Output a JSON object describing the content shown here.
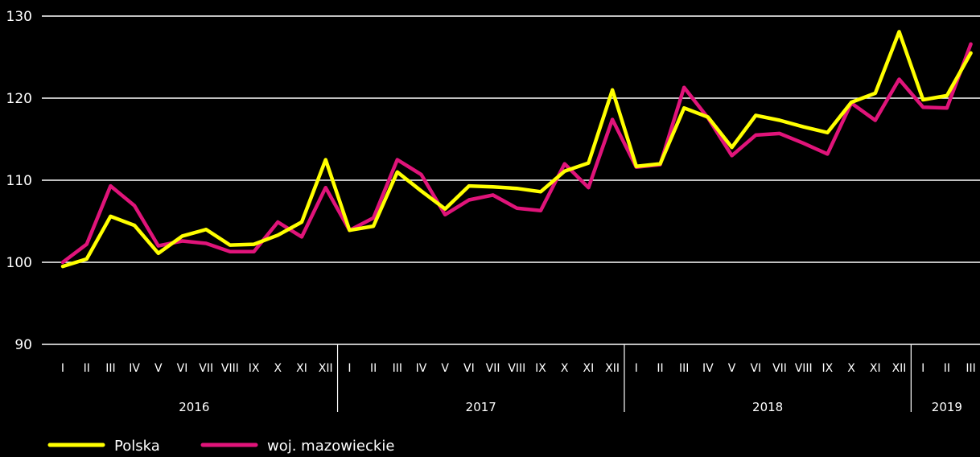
{
  "colors": {
    "background": "#000000",
    "grid": "#ffffff",
    "text": "#ffffff",
    "polska": "#ffff00",
    "mazowieckie": "#e0147a"
  },
  "chart_data": {
    "type": "line",
    "title": "",
    "xlabel": "",
    "ylabel": "",
    "ylim": [
      90,
      130
    ],
    "yticks": [
      90,
      100,
      110,
      120,
      130
    ],
    "grid": true,
    "legend_position": "bottom-left",
    "categories": [
      "I",
      "II",
      "III",
      "IV",
      "V",
      "VI",
      "VII",
      "VIII",
      "IX",
      "X",
      "XI",
      "XII",
      "I",
      "II",
      "III",
      "IV",
      "V",
      "VI",
      "VII",
      "VIII",
      "IX",
      "X",
      "XI",
      "XII",
      "I",
      "II",
      "III",
      "IV",
      "V",
      "VI",
      "VII",
      "VIII",
      "IX",
      "X",
      "XI",
      "XII",
      "I",
      "II",
      "III"
    ],
    "years": [
      {
        "label": "2016",
        "start": 0,
        "end": 11
      },
      {
        "label": "2017",
        "start": 12,
        "end": 23
      },
      {
        "label": "2018",
        "start": 24,
        "end": 35
      },
      {
        "label": "2019",
        "start": 36,
        "end": 38
      }
    ],
    "series": [
      {
        "name": "Polska",
        "color": "#ffff00",
        "values": [
          99.5,
          100.4,
          105.6,
          104.5,
          101.1,
          103.2,
          104.0,
          102.1,
          102.2,
          103.3,
          104.9,
          112.5,
          103.9,
          104.4,
          111.0,
          108.7,
          106.5,
          109.3,
          109.2,
          109.0,
          108.6,
          111.1,
          112.1,
          121.0,
          111.7,
          112.0,
          118.8,
          117.7,
          114.0,
          117.9,
          117.3,
          116.5,
          115.8,
          119.5,
          120.6,
          128.1,
          119.8,
          120.3,
          125.5
        ]
      },
      {
        "name": "woj. mazowieckie",
        "color": "#e0147a",
        "values": [
          100.0,
          102.2,
          109.3,
          106.9,
          102.0,
          102.6,
          102.3,
          101.3,
          101.3,
          104.9,
          103.1,
          109.1,
          103.9,
          105.4,
          112.5,
          110.7,
          105.8,
          107.6,
          108.2,
          106.6,
          106.3,
          112.0,
          109.1,
          117.4,
          111.6,
          111.9,
          121.3,
          117.6,
          113.0,
          115.5,
          115.7,
          114.5,
          113.2,
          119.4,
          117.3,
          122.3,
          118.9,
          118.8,
          126.6
        ]
      }
    ]
  }
}
